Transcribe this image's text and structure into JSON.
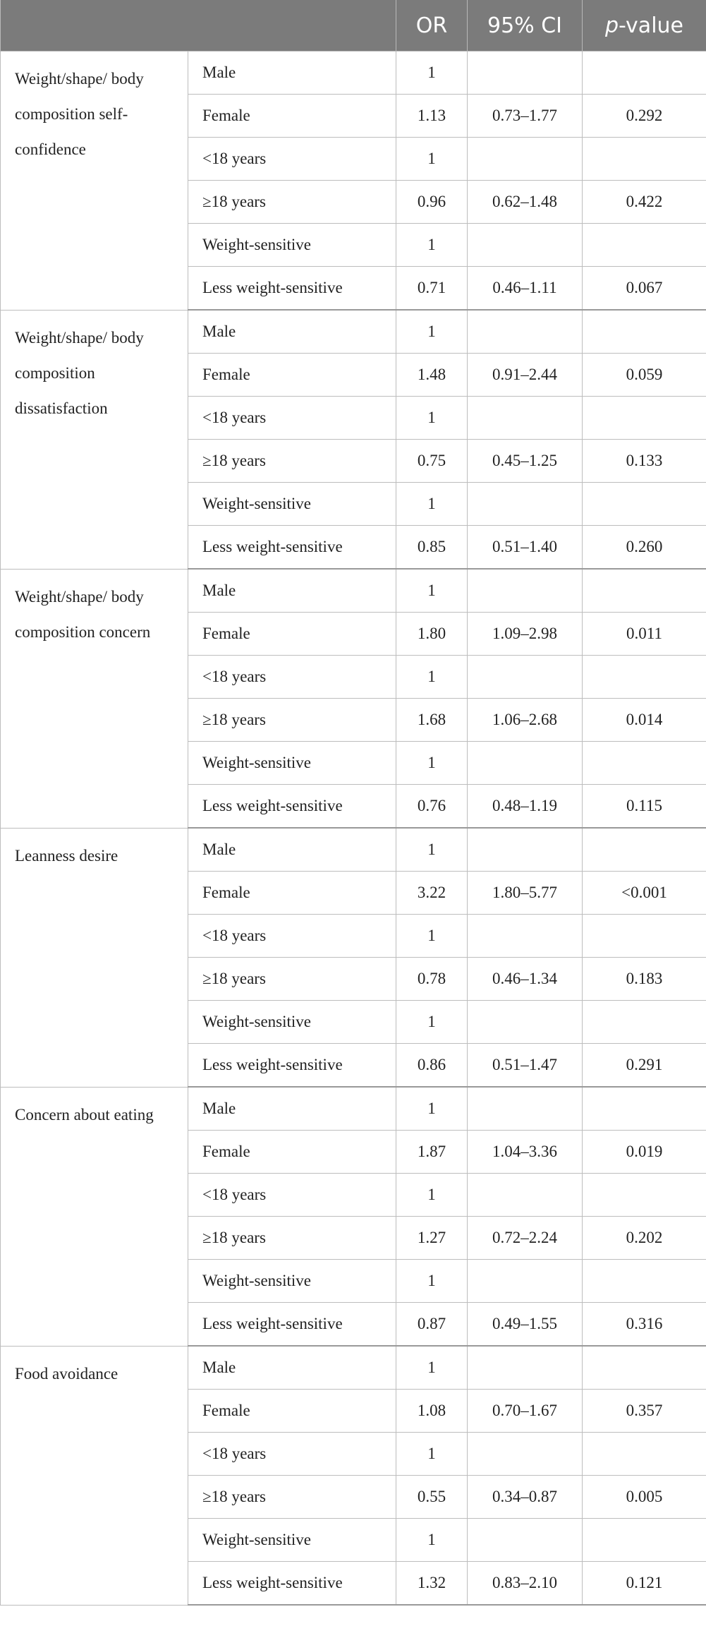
{
  "header": {
    "or": "OR",
    "ci": "95% CI",
    "p": [
      "p",
      "-value"
    ]
  },
  "groups": [
    {
      "label": "Weight/shape/ body composition self-confidence",
      "rows": [
        [
          "Male",
          "1"
        ],
        [
          "Female",
          "1.13",
          "0.73–1.77",
          "0.292"
        ],
        [
          "<18 years",
          "1"
        ],
        [
          "≥18 years",
          "0.96",
          "0.62–1.48",
          "0.422"
        ],
        [
          "Weight-sensitive",
          "1"
        ],
        [
          "Less weight-sensitive",
          "0.71",
          "0.46–1.11",
          "0.067"
        ]
      ]
    },
    {
      "label": "Weight/shape/ body composition dissatisfaction",
      "rows": [
        [
          "Male",
          "1"
        ],
        [
          "Female",
          "1.48",
          "0.91–2.44",
          "0.059"
        ],
        [
          "<18 years",
          "1"
        ],
        [
          "≥18 years",
          "0.75",
          "0.45–1.25",
          "0.133"
        ],
        [
          "Weight-sensitive",
          "1"
        ],
        [
          "Less weight-sensitive",
          "0.85",
          "0.51–1.40",
          "0.260"
        ]
      ]
    },
    {
      "label": "Weight/shape/ body composition concern",
      "rows": [
        [
          "Male",
          "1"
        ],
        [
          "Female",
          "1.80",
          "1.09–2.98",
          "0.011"
        ],
        [
          "<18 years",
          "1"
        ],
        [
          "≥18 years",
          "1.68",
          "1.06–2.68",
          "0.014"
        ],
        [
          "Weight-sensitive",
          "1"
        ],
        [
          "Less weight-sensitive",
          "0.76",
          "0.48–1.19",
          "0.115"
        ]
      ]
    },
    {
      "label": "Leanness desire",
      "rows": [
        [
          "Male",
          "1"
        ],
        [
          "Female",
          "3.22",
          "1.80–5.77",
          "<0.001"
        ],
        [
          "<18 years",
          "1"
        ],
        [
          "≥18 years",
          "0.78",
          "0.46–1.34",
          "0.183"
        ],
        [
          "Weight-sensitive",
          "1"
        ],
        [
          "Less weight-sensitive",
          "0.86",
          "0.51–1.47",
          "0.291"
        ]
      ]
    },
    {
      "label": "Concern about eating",
      "rows": [
        [
          "Male",
          "1"
        ],
        [
          "Female",
          "1.87",
          "1.04–3.36",
          "0.019"
        ],
        [
          "<18 years",
          "1"
        ],
        [
          "≥18 years",
          "1.27",
          "0.72–2.24",
          "0.202"
        ],
        [
          "Weight-sensitive",
          "1"
        ],
        [
          "Less weight-sensitive",
          "0.87",
          "0.49–1.55",
          "0.316"
        ]
      ]
    },
    {
      "label": "Food avoidance",
      "rows": [
        [
          "Male",
          "1"
        ],
        [
          "Female",
          "1.08",
          "0.70–1.67",
          "0.357"
        ],
        [
          "<18 years",
          "1"
        ],
        [
          "≥18 years",
          "0.55",
          "0.34–0.87",
          "0.005"
        ],
        [
          "Weight-sensitive",
          "1"
        ],
        [
          "Less weight-sensitive",
          "1.32",
          "0.83–2.10",
          "0.121"
        ]
      ]
    }
  ]
}
